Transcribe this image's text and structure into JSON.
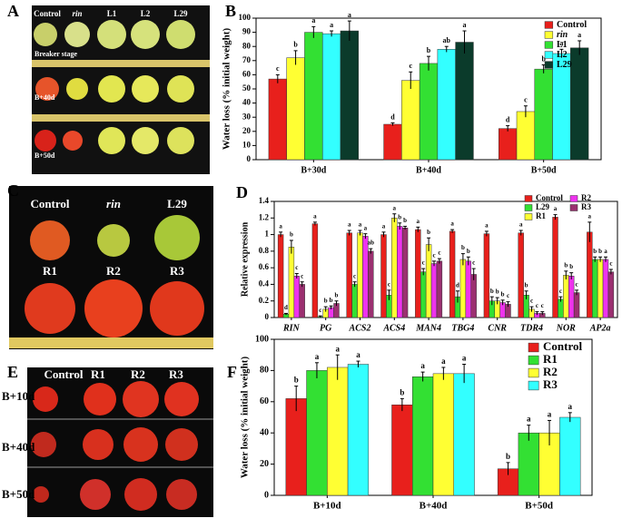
{
  "chart_data": [
    {
      "panel": "B",
      "type": "bar",
      "ylabel": "Water loss (% initial weight)",
      "categories": [
        "B+30d",
        "B+40d",
        "B+50d"
      ],
      "series": [
        {
          "name": "Control",
          "color": "#e8201c",
          "values": [
            57,
            25,
            22
          ],
          "errors": [
            3,
            1,
            2
          ],
          "letters": [
            "c",
            "d",
            "d"
          ]
        },
        {
          "name": "rin",
          "color": "#ffff33",
          "values": [
            72,
            56,
            34
          ],
          "errors": [
            5,
            6,
            4
          ],
          "letters": [
            "b",
            "c",
            "c"
          ]
        },
        {
          "name": "L1",
          "color": "#33e033",
          "values": [
            90,
            68,
            64
          ],
          "errors": [
            4,
            5,
            3
          ],
          "letters": [
            "a",
            "b",
            "b"
          ]
        },
        {
          "name": "L2",
          "color": "#33ffff",
          "values": [
            89,
            78,
            75
          ],
          "errors": [
            2,
            2,
            3
          ],
          "letters": [
            "a",
            "ab",
            "a"
          ]
        },
        {
          "name": "L29",
          "color": "#0b3b2b",
          "values": [
            91,
            83,
            79
          ],
          "errors": [
            7,
            8,
            5
          ],
          "letters": [
            "a",
            "a",
            "a"
          ]
        }
      ],
      "ylim": [
        0,
        100
      ],
      "yticks": [
        0,
        10,
        20,
        30,
        40,
        50,
        60,
        70,
        80,
        90,
        100
      ],
      "legend": "upper right"
    },
    {
      "panel": "D",
      "type": "bar",
      "ylabel": "Relative expression",
      "categories": [
        "RIN",
        "PG",
        "ACS2",
        "ACS4",
        "MAN4",
        "TBG4",
        "CNR",
        "TDR4",
        "NOR",
        "AP2a"
      ],
      "series": [
        {
          "name": "Control",
          "color": "#e8201c",
          "values": [
            1.0,
            1.13,
            1.02,
            1.0,
            1.06,
            1.04,
            1.01,
            1.02,
            1.21,
            1.03
          ],
          "errors": [
            0.03,
            0.02,
            0.03,
            0.03,
            0.03,
            0.02,
            0.03,
            0.03,
            0.03,
            0.12
          ],
          "letters": [
            "a",
            "a",
            "a",
            "a",
            "a",
            "a",
            "a",
            "a",
            "a",
            "a"
          ]
        },
        {
          "name": "L29",
          "color": "#33e033",
          "values": [
            0.04,
            0.01,
            0.4,
            0.27,
            0.55,
            0.25,
            0.2,
            0.27,
            0.22,
            0.7
          ],
          "errors": [
            0.01,
            0.01,
            0.03,
            0.06,
            0.04,
            0.07,
            0.05,
            0.05,
            0.03,
            0.03
          ],
          "letters": [
            "d",
            "c",
            "c",
            "c",
            "c",
            "d",
            "b",
            "b",
            "c",
            "b"
          ]
        },
        {
          "name": "R1",
          "color": "#ffff33",
          "values": [
            0.85,
            0.1,
            1.02,
            1.2,
            0.88,
            0.7,
            0.2,
            0.1,
            0.51,
            0.7
          ],
          "errors": [
            0.08,
            0.03,
            0.03,
            0.05,
            0.08,
            0.07,
            0.04,
            0.03,
            0.05,
            0.03
          ],
          "letters": [
            "b",
            "b",
            "a",
            "a",
            "b",
            "b",
            "b",
            "c",
            "b",
            "b"
          ]
        },
        {
          "name": "R2",
          "color": "#ee33ee",
          "values": [
            0.5,
            0.12,
            0.98,
            1.1,
            0.65,
            0.68,
            0.18,
            0.05,
            0.5,
            0.7
          ],
          "errors": [
            0.03,
            0.02,
            0.03,
            0.04,
            0.03,
            0.05,
            0.03,
            0.02,
            0.04,
            0.03
          ],
          "letters": [
            "c",
            "b",
            "a",
            "b",
            "c",
            "b",
            "b",
            "c",
            "b",
            "a"
          ]
        },
        {
          "name": "R3",
          "color": "#9b3070",
          "values": [
            0.4,
            0.17,
            0.8,
            1.08,
            0.68,
            0.52,
            0.16,
            0.05,
            0.3,
            0.55
          ],
          "errors": [
            0.03,
            0.03,
            0.03,
            0.02,
            0.03,
            0.07,
            0.03,
            0.02,
            0.03,
            0.03
          ],
          "letters": [
            "c",
            "b",
            "ab",
            "b",
            "c",
            "c",
            "c",
            "c",
            "c",
            "c"
          ]
        }
      ],
      "ylim": [
        0,
        1.4
      ],
      "yticks": [
        0,
        0.2,
        0.4,
        0.6,
        0.8,
        1,
        1.2,
        1.4
      ],
      "legend": "upper right"
    },
    {
      "panel": "F",
      "type": "bar",
      "ylabel": "Water loss (% initial weight)",
      "categories": [
        "B+10d",
        "B+40d",
        "B+50d"
      ],
      "series": [
        {
          "name": "Control",
          "color": "#e8201c",
          "values": [
            62,
            58,
            17
          ],
          "errors": [
            8,
            4,
            4
          ],
          "letters": [
            "b",
            "b",
            "b"
          ]
        },
        {
          "name": "R1",
          "color": "#33e033",
          "values": [
            80,
            76,
            40
          ],
          "errors": [
            5,
            3,
            5
          ],
          "letters": [
            "a",
            "a",
            "a"
          ]
        },
        {
          "name": "R2",
          "color": "#ffff33",
          "values": [
            82,
            78,
            40
          ],
          "errors": [
            8,
            4,
            8
          ],
          "letters": [
            "a",
            "a",
            "a"
          ]
        },
        {
          "name": "R3",
          "color": "#33ffff",
          "values": [
            84,
            78,
            50
          ],
          "errors": [
            2,
            6,
            3
          ],
          "letters": [
            "a",
            "a",
            "a"
          ]
        }
      ],
      "ylim": [
        0,
        100
      ],
      "yticks": [
        0,
        20,
        40,
        60,
        80,
        100
      ],
      "legend": "upper right"
    }
  ],
  "photos": [
    {
      "panel": "A",
      "columns": [
        "Control",
        "rin",
        "L1",
        "L2",
        "L29"
      ],
      "rows": [
        "Breaker stage",
        "B+40d",
        "B+50d"
      ]
    },
    {
      "panel": "C",
      "columns": [
        "Control",
        "rin",
        "L29"
      ],
      "rows": [
        "R1",
        "R2",
        "R3"
      ]
    },
    {
      "panel": "E",
      "columns": [
        "Control",
        "R1",
        "R2",
        "R3"
      ],
      "rows": [
        "B+10d",
        "B+40d",
        "B+50d"
      ]
    }
  ]
}
